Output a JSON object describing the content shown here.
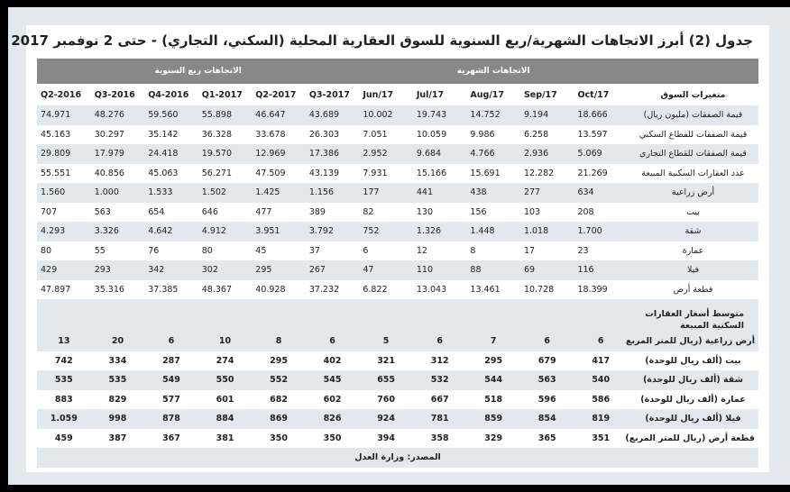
{
  "title": "جدول (2) أبرز الاتجاهات الشهرية/ربع السنوية للسوق العقارية المحلية (السكني، التجاري) - حتى 2 نوفمبر 2017",
  "bands": {
    "monthly": "الاتجاهات الشهرية",
    "quarterly": "الاتجاهات ربع السنوية"
  },
  "columns": {
    "label": "متغيرات السوق",
    "periods": [
      "Oct/17",
      "Sep/17",
      "Aug/17",
      "Jul/17",
      "Jun/17",
      "2017-Q3",
      "2017-Q2",
      "2017-Q1",
      "2016-Q4",
      "2016-Q3",
      "2016-Q2"
    ]
  },
  "rows": [
    {
      "label": "قيمة الصفقات (مليون ريال)",
      "values": [
        "18.666",
        "9.194",
        "14.752",
        "19.743",
        "10.002",
        "43.689",
        "46.647",
        "55.898",
        "59.560",
        "48.276",
        "74.971"
      ]
    },
    {
      "label": "قيمة الصفقات للقطاع السكني",
      "values": [
        "13.597",
        "6.258",
        "9.986",
        "10.059",
        "7.051",
        "26.303",
        "33.678",
        "36.328",
        "35.142",
        "30.297",
        "45.163"
      ]
    },
    {
      "label": "قيمة الصفقات للقطاع التجاري",
      "values": [
        "5.069",
        "2.936",
        "4.766",
        "9.684",
        "2.952",
        "17.386",
        "12.969",
        "19.570",
        "24.418",
        "17.979",
        "29.809"
      ]
    },
    {
      "label": "عدد العقارات السكنية المبيعة",
      "values": [
        "21.269",
        "12.282",
        "15.691",
        "15.166",
        "7.931",
        "43.139",
        "47.509",
        "56.271",
        "45.063",
        "40.856",
        "55.551"
      ]
    },
    {
      "label": "أرض زراعية",
      "values": [
        "634",
        "277",
        "438",
        "441",
        "177",
        "1.156",
        "1.425",
        "1.502",
        "1.533",
        "1.000",
        "1.560"
      ]
    },
    {
      "label": "بيت",
      "values": [
        "208",
        "103",
        "156",
        "130",
        "82",
        "389",
        "477",
        "646",
        "654",
        "563",
        "707"
      ]
    },
    {
      "label": "شقة",
      "values": [
        "1.700",
        "1.018",
        "1.448",
        "1.326",
        "752",
        "3.792",
        "3.951",
        "4.912",
        "4.642",
        "3.326",
        "4.293"
      ]
    },
    {
      "label": "عمارة",
      "values": [
        "23",
        "17",
        "8",
        "12",
        "6",
        "37",
        "45",
        "80",
        "76",
        "55",
        "80"
      ]
    },
    {
      "label": "فيلا",
      "values": [
        "116",
        "69",
        "88",
        "110",
        "47",
        "267",
        "295",
        "302",
        "342",
        "293",
        "429"
      ]
    },
    {
      "label": "قطعة أرض",
      "values": [
        "18.399",
        "10.728",
        "13.461",
        "13.043",
        "6.822",
        "37.232",
        "40.928",
        "48.367",
        "37.385",
        "35.316",
        "47.897"
      ]
    }
  ],
  "prices_section": {
    "heading": "متوسط أسعار العقارات السكنية المبيعة",
    "rows": [
      {
        "label": "أرض زراعية  (ريال للمتر المربع",
        "values": [
          "6",
          "6",
          "7",
          "6",
          "5",
          "6",
          "8",
          "10",
          "6",
          "20",
          "13"
        ]
      },
      {
        "label": "بيت  (ألف ريال للوحدة)",
        "values": [
          "417",
          "679",
          "295",
          "312",
          "321",
          "402",
          "295",
          "274",
          "287",
          "334",
          "742"
        ]
      },
      {
        "label": "شقة  (ألف ريال للوحدة)",
        "values": [
          "540",
          "563",
          "544",
          "532",
          "655",
          "545",
          "552",
          "550",
          "549",
          "535",
          "535"
        ]
      },
      {
        "label": "عمارة  (ألف ريال للوحدة)",
        "values": [
          "586",
          "596",
          "518",
          "667",
          "760",
          "602",
          "682",
          "601",
          "577",
          "829",
          "883"
        ]
      },
      {
        "label": "فيلا  (ألف ريال للوحدة)",
        "values": [
          "819",
          "854",
          "859",
          "781",
          "924",
          "826",
          "869",
          "884",
          "878",
          "998",
          "1.059"
        ]
      },
      {
        "label": "قطعة أرض  (ريال للمتر المربع)",
        "values": [
          "351",
          "365",
          "329",
          "358",
          "394",
          "350",
          "350",
          "381",
          "367",
          "387",
          "459"
        ]
      }
    ]
  },
  "source": "المصدر: وزارة العدل",
  "colors": {
    "band": "#888888",
    "stripe": "#e3e7ee",
    "frame": "#e3e7ee",
    "text": "#222222"
  }
}
